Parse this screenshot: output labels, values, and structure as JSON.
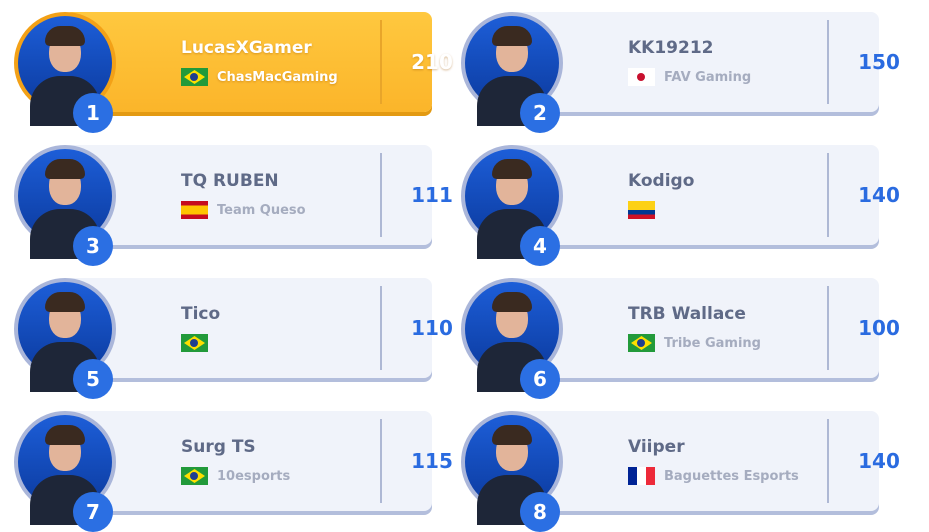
{
  "colors": {
    "gold": "#fbb52a",
    "card": "#f0f3fa",
    "accent_blue": "#2b6fe3",
    "score_blue": "#2a6be0"
  },
  "players": [
    {
      "rank": "1",
      "name": "LucasXGamer",
      "team": "ChasMacGaming",
      "flag": "brazil-flag",
      "score": "210",
      "highlight": true
    },
    {
      "rank": "2",
      "name": "KK19212",
      "team": "FAV Gaming",
      "flag": "japan-flag",
      "score": "150"
    },
    {
      "rank": "3",
      "name": "TQ RUBEN",
      "team": "Team Queso",
      "flag": "spain-flag",
      "score": "111"
    },
    {
      "rank": "4",
      "name": "Kodigo",
      "team": "",
      "flag": "colombia-flag",
      "score": "140"
    },
    {
      "rank": "5",
      "name": "Tico",
      "team": "",
      "flag": "brazil-flag",
      "score": "110"
    },
    {
      "rank": "6",
      "name": "TRB Wallace",
      "team": "Tribe Gaming",
      "flag": "brazil-flag",
      "score": "100"
    },
    {
      "rank": "7",
      "name": "Surg TS",
      "team": "10esports",
      "flag": "brazil-flag",
      "score": "115"
    },
    {
      "rank": "8",
      "name": "Viiper",
      "team": "Baguettes Esports",
      "flag": "france-flag",
      "score": "140"
    }
  ]
}
